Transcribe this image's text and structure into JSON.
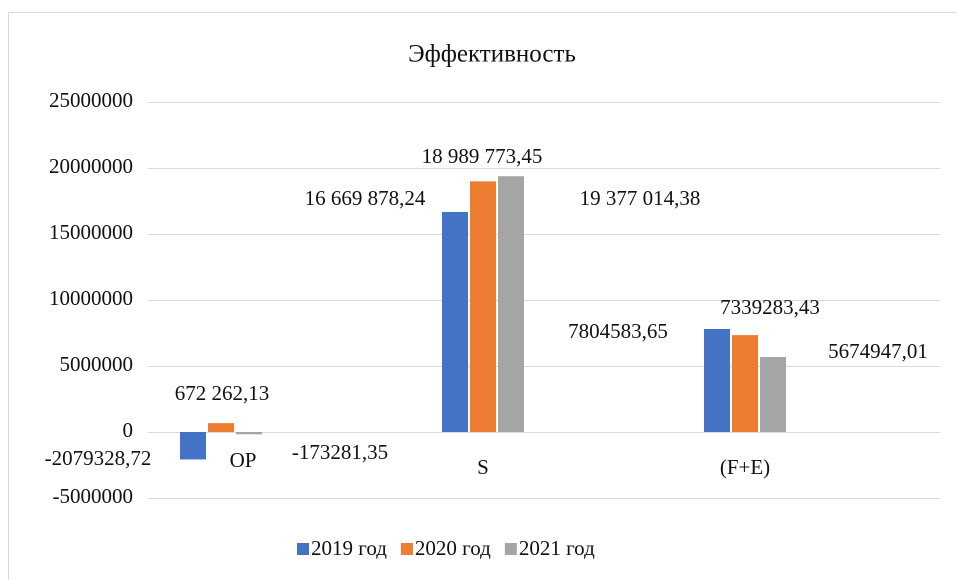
{
  "chart_data": {
    "type": "bar",
    "title": "Эффективность",
    "categories": [
      "OP",
      "S",
      "(F+E)"
    ],
    "series": [
      {
        "name": "2019 год",
        "color": "#4472c4",
        "values": [
          -2079328.72,
          16669878.24,
          7804583.65
        ],
        "value_labels": [
          "-2079328,72",
          "16 669 878,24",
          "7804583,65"
        ]
      },
      {
        "name": "2020 год",
        "color": "#ed7d31",
        "values": [
          672262.13,
          18989773.45,
          7339283.43
        ],
        "value_labels": [
          "672 262,13",
          "18 989 773,45",
          "7339283,43"
        ]
      },
      {
        "name": "2021 год",
        "color": "#a5a5a5",
        "values": [
          -173281.35,
          19377014.38,
          5674947.01
        ],
        "value_labels": [
          "-173281,35",
          "19 377 014,38",
          "5674947,01"
        ]
      }
    ],
    "ylim": [
      -5000000,
      25000000
    ],
    "yticks": [
      -5000000,
      0,
      5000000,
      10000000,
      15000000,
      20000000,
      25000000
    ],
    "grid": true,
    "legend": "bottom"
  }
}
